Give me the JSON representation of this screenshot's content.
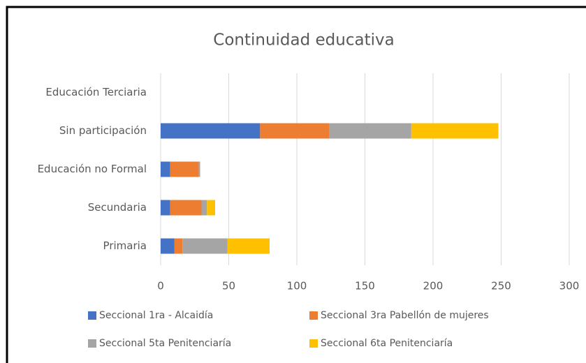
{
  "chart_data": {
    "type": "stacked_barh",
    "title": "Continuidad educativa",
    "categories": [
      "Educación Terciaria",
      "Sin participación",
      "Educación no Formal",
      "Secundaria",
      "Primaria"
    ],
    "series": [
      {
        "name": "Seccional 1ra - Alcaidía",
        "color": "#4472c4",
        "values": [
          0,
          73,
          7,
          7,
          10
        ]
      },
      {
        "name": "Seccional 3ra Pabellón de mujeres",
        "color": "#ed7d31",
        "values": [
          0,
          51,
          21,
          23,
          6
        ]
      },
      {
        "name": "Seccional 5ta Penitenciaría",
        "color": "#a5a5a5",
        "values": [
          0,
          60,
          1,
          4,
          33
        ]
      },
      {
        "name": "Seccional 6ta Penitenciaría",
        "color": "#ffc000",
        "values": [
          0,
          64,
          0,
          6,
          31
        ]
      }
    ],
    "xlim": [
      0,
      300
    ],
    "xticks": [
      0,
      50,
      100,
      150,
      200,
      250,
      300
    ],
    "grid": true
  }
}
